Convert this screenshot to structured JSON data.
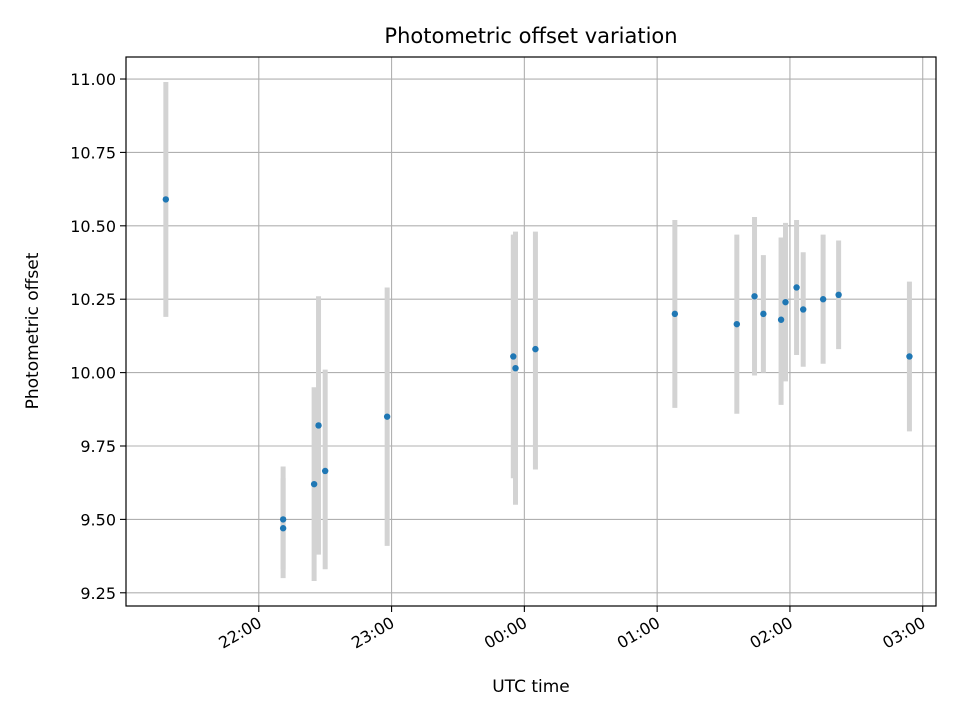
{
  "chart_data": {
    "type": "scatter",
    "title": "Photometric offset variation",
    "xlabel": "UTC time",
    "ylabel": "Photometric offset",
    "x_axis": "time",
    "xlim_hours": [
      21.0,
      27.1
    ],
    "ylim": [
      9.205,
      11.075
    ],
    "grid": true,
    "x_ticks": [
      {
        "hour": 22,
        "label": "22:00"
      },
      {
        "hour": 23,
        "label": "23:00"
      },
      {
        "hour": 24,
        "label": "00:00"
      },
      {
        "hour": 25,
        "label": "01:00"
      },
      {
        "hour": 26,
        "label": "02:00"
      },
      {
        "hour": 27,
        "label": "03:00"
      }
    ],
    "y_ticks": [
      {
        "value": 9.25,
        "label": "9.25"
      },
      {
        "value": 9.5,
        "label": "9.50"
      },
      {
        "value": 9.75,
        "label": "9.75"
      },
      {
        "value": 10.0,
        "label": "10.00"
      },
      {
        "value": 10.25,
        "label": "10.25"
      },
      {
        "value": 10.5,
        "label": "10.50"
      },
      {
        "value": 10.75,
        "label": "10.75"
      },
      {
        "value": 11.0,
        "label": "11.00"
      }
    ],
    "colors": {
      "point": "#1f77b4",
      "errorbar": "#d3d3d3",
      "grid": "#b0b0b0"
    },
    "points": [
      {
        "time": "21:18",
        "y": 10.59,
        "ylo": 10.19,
        "yhi": 10.99
      },
      {
        "time": "22:11",
        "y": 9.5,
        "ylo": 9.33,
        "yhi": 9.68
      },
      {
        "time": "22:11",
        "y": 9.47,
        "ylo": 9.3,
        "yhi": 9.64
      },
      {
        "time": "22:25",
        "y": 9.62,
        "ylo": 9.29,
        "yhi": 9.95
      },
      {
        "time": "22:27",
        "y": 9.82,
        "ylo": 9.38,
        "yhi": 10.26
      },
      {
        "time": "22:30",
        "y": 9.665,
        "ylo": 9.33,
        "yhi": 10.01
      },
      {
        "time": "22:58",
        "y": 9.85,
        "ylo": 9.41,
        "yhi": 10.29
      },
      {
        "time": "23:55",
        "y": 10.055,
        "ylo": 9.64,
        "yhi": 10.47
      },
      {
        "time": "23:56",
        "y": 10.015,
        "ylo": 9.55,
        "yhi": 10.48
      },
      {
        "time": "00:05",
        "y": 10.08,
        "ylo": 9.67,
        "yhi": 10.48
      },
      {
        "time": "01:08",
        "y": 10.2,
        "ylo": 9.88,
        "yhi": 10.52
      },
      {
        "time": "01:36",
        "y": 10.165,
        "ylo": 9.86,
        "yhi": 10.47
      },
      {
        "time": "01:44",
        "y": 10.26,
        "ylo": 9.99,
        "yhi": 10.53
      },
      {
        "time": "01:48",
        "y": 10.2,
        "ylo": 10.0,
        "yhi": 10.4
      },
      {
        "time": "01:56",
        "y": 10.18,
        "ylo": 9.89,
        "yhi": 10.46
      },
      {
        "time": "01:58",
        "y": 10.24,
        "ylo": 9.97,
        "yhi": 10.51
      },
      {
        "time": "02:03",
        "y": 10.29,
        "ylo": 10.06,
        "yhi": 10.52
      },
      {
        "time": "02:06",
        "y": 10.215,
        "ylo": 10.02,
        "yhi": 10.41
      },
      {
        "time": "02:15",
        "y": 10.25,
        "ylo": 10.03,
        "yhi": 10.47
      },
      {
        "time": "02:22",
        "y": 10.265,
        "ylo": 10.08,
        "yhi": 10.45
      },
      {
        "time": "02:54",
        "y": 10.055,
        "ylo": 9.8,
        "yhi": 10.31
      }
    ]
  }
}
